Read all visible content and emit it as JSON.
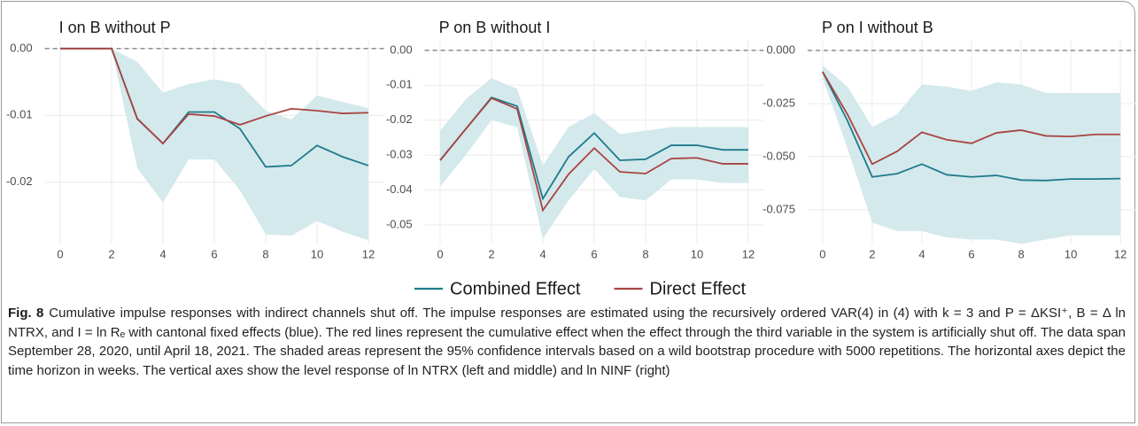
{
  "chart_data": [
    {
      "type": "line",
      "title": "I on B without P",
      "x": [
        0,
        1,
        2,
        3,
        4,
        5,
        6,
        7,
        8,
        9,
        10,
        11,
        12
      ],
      "xlim": [
        -0.6,
        12.6
      ],
      "xticks": [
        0,
        2,
        4,
        6,
        8,
        10,
        12
      ],
      "ylim": [
        -0.0293,
        0.0013
      ],
      "yticks": [
        {
          "value": 0,
          "label": "0.00"
        },
        -0.01,
        -0.02
      ],
      "grid": true,
      "hline": 0,
      "band": {
        "color": "#d3e9ec",
        "upper": [
          0,
          0,
          0,
          -0.002,
          -0.0066,
          -0.0053,
          -0.0046,
          -0.0053,
          -0.0093,
          -0.0106,
          -0.007,
          -0.008,
          -0.0089
        ],
        "lower": [
          0,
          0,
          0,
          -0.0179,
          -0.023,
          -0.0166,
          -0.0166,
          -0.0212,
          -0.0278,
          -0.028,
          -0.0258,
          -0.0274,
          -0.0287
        ]
      },
      "series": [
        {
          "name": "Combined Effect",
          "color": "#1f7a8c",
          "values": [
            0,
            0,
            0,
            -0.0105,
            -0.0142,
            -0.0095,
            -0.0095,
            -0.012,
            -0.0177,
            -0.0175,
            -0.0145,
            -0.0162,
            -0.0175
          ]
        },
        {
          "name": "Direct Effect",
          "color": "#a94442",
          "values": [
            0,
            0,
            0,
            -0.0105,
            -0.0142,
            -0.0098,
            -0.0101,
            -0.0114,
            -0.0101,
            -0.009,
            -0.0093,
            -0.0097,
            -0.0096
          ]
        }
      ]
    },
    {
      "type": "line",
      "title": "P on B without I",
      "x": [
        0,
        1,
        2,
        3,
        4,
        5,
        6,
        7,
        8,
        9,
        10,
        11,
        12
      ],
      "xlim": [
        -0.6,
        12.6
      ],
      "xticks": [
        0,
        2,
        4,
        6,
        8,
        10,
        12
      ],
      "ylim": [
        -0.0556,
        0.003
      ],
      "yticks": [
        {
          "value": 0,
          "label": "0.00"
        },
        -0.01,
        -0.02,
        -0.03,
        -0.04,
        -0.05
      ],
      "grid": true,
      "hline": 0,
      "band": {
        "color": "#d3e9ec",
        "upper": [
          -0.023,
          -0.014,
          -0.008,
          -0.011,
          -0.033,
          -0.022,
          -0.018,
          -0.024,
          -0.023,
          -0.022,
          -0.022,
          -0.022,
          -0.022
        ],
        "lower": [
          -0.039,
          -0.03,
          -0.02,
          -0.022,
          -0.054,
          -0.043,
          -0.034,
          -0.042,
          -0.043,
          -0.037,
          -0.037,
          -0.038,
          -0.038
        ]
      },
      "series": [
        {
          "color": "#1f7a8c",
          "values": [
            -0.0315,
            -0.0225,
            -0.0135,
            -0.016,
            -0.0425,
            -0.0305,
            -0.0237,
            -0.0315,
            -0.0312,
            -0.0272,
            -0.0272,
            -0.0285,
            -0.0285
          ]
        },
        {
          "color": "#a94442",
          "values": [
            -0.0315,
            -0.0225,
            -0.0137,
            -0.0168,
            -0.0458,
            -0.0355,
            -0.028,
            -0.0348,
            -0.0353,
            -0.031,
            -0.0308,
            -0.0325,
            -0.0325
          ]
        }
      ]
    },
    {
      "type": "line",
      "title": "P on I without B",
      "x": [
        0,
        1,
        2,
        3,
        4,
        5,
        6,
        7,
        8,
        9,
        10,
        11,
        12
      ],
      "xlim": [
        -0.6,
        12.6
      ],
      "xticks": [
        0,
        2,
        4,
        6,
        8,
        10,
        12
      ],
      "ylim": [
        -0.0913,
        0.005
      ],
      "yticks": [
        {
          "value": 0,
          "label": "0.000"
        },
        -0.025,
        {
          "value": -0.05,
          "label": "-0.050"
        },
        -0.075
      ],
      "grid": true,
      "hline": 0,
      "band": {
        "color": "#d3e9ec",
        "upper": [
          -0.007,
          -0.017,
          -0.036,
          -0.03,
          -0.016,
          -0.017,
          -0.019,
          -0.015,
          -0.016,
          -0.02,
          -0.02,
          -0.02,
          -0.02
        ],
        "lower": [
          -0.013,
          -0.046,
          -0.081,
          -0.085,
          -0.085,
          -0.088,
          -0.089,
          -0.089,
          -0.091,
          -0.089,
          -0.087,
          -0.087,
          -0.087
        ]
      },
      "series": [
        {
          "color": "#1f7a8c",
          "values": [
            -0.01,
            -0.033,
            -0.0595,
            -0.058,
            -0.0535,
            -0.0585,
            -0.0595,
            -0.0588,
            -0.061,
            -0.0612,
            -0.0605,
            -0.0605,
            -0.0603
          ]
        },
        {
          "color": "#a94442",
          "values": [
            -0.01,
            -0.03,
            -0.0535,
            -0.0475,
            -0.0385,
            -0.042,
            -0.0437,
            -0.0388,
            -0.0375,
            -0.0402,
            -0.0405,
            -0.0395,
            -0.0395
          ]
        }
      ]
    }
  ],
  "caption": {
    "label": "Fig. 8",
    "text": "Cumulative impulse responses with indirect channels shut off. The impulse responses are estimated using the recursively ordered VAR(4) in (4) with k = 3 and P = ΔKSI⁺, B = Δ ln NTRX, and I = ln Rₑ with cantonal fixed effects (blue). The red lines represent the cumulative effect when the effect through the third variable in the system is artificially shut off. The data span September 28, 2020, until April 18, 2021. The shaded areas represent the 95% confidence intervals based on a wild bootstrap procedure with 5000 repetitions. The horizontal axes depict the time horizon in weeks. The vertical axes show the level response of ln NTRX (left and middle) and ln NINF (right)"
  }
}
